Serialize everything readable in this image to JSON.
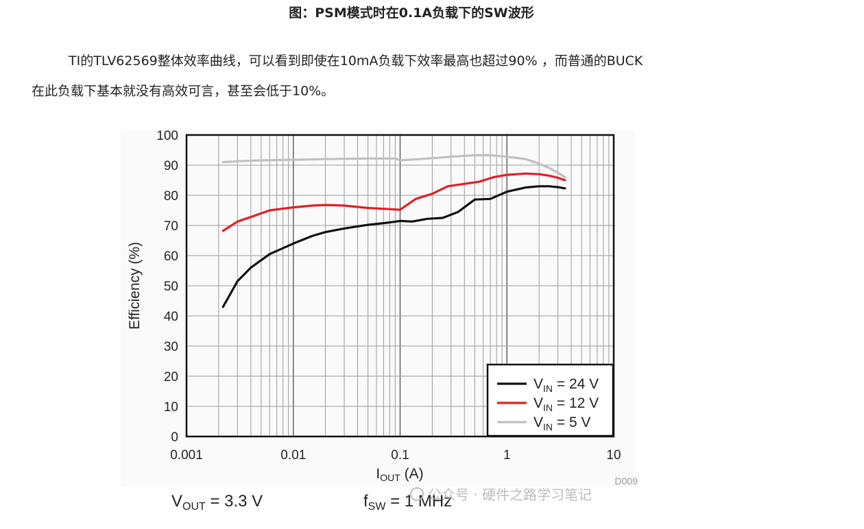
{
  "caption": "图：PSM模式时在0.1A负载下的SW波形",
  "paragraph": {
    "line1": "TI的TLV62569整体效率曲线，可以看到即使在10mA负载下效率最高也超过90% ，而普通的BUCK",
    "line2": "在此负载下基本就没有高效可言，甚至会低于10%。"
  },
  "chart_data": {
    "type": "line",
    "x_scale": "log",
    "xlim": [
      0.001,
      10
    ],
    "ylim": [
      0,
      100
    ],
    "grid": true,
    "legend_position": "bottom-right",
    "ylabel": "Efficiency (%)",
    "xlabel": {
      "main": "I",
      "sub": "OUT",
      "unit": " (A)"
    },
    "x_ticks": [
      "0.001",
      "0.01",
      "0.1",
      "1",
      "10"
    ],
    "y_ticks": [
      "0",
      "10",
      "20",
      "30",
      "40",
      "50",
      "60",
      "70",
      "80",
      "90",
      "100"
    ],
    "series": [
      {
        "name": {
          "main": "V",
          "sub": "IN",
          "rest": " = 24 V"
        },
        "color": "#111111",
        "points": [
          [
            0.0022,
            43
          ],
          [
            0.003,
            51.5
          ],
          [
            0.004,
            56
          ],
          [
            0.006,
            60.5
          ],
          [
            0.01,
            64
          ],
          [
            0.015,
            66.5
          ],
          [
            0.02,
            67.8
          ],
          [
            0.03,
            69
          ],
          [
            0.05,
            70.2
          ],
          [
            0.08,
            71
          ],
          [
            0.1,
            71.5
          ],
          [
            0.13,
            71.3
          ],
          [
            0.18,
            72.2
          ],
          [
            0.25,
            72.5
          ],
          [
            0.35,
            74.5
          ],
          [
            0.5,
            78.6
          ],
          [
            0.7,
            78.8
          ],
          [
            1.0,
            81.2
          ],
          [
            1.5,
            82.6
          ],
          [
            2.0,
            83
          ],
          [
            2.5,
            83
          ],
          [
            3.0,
            82.7
          ],
          [
            3.5,
            82.3
          ]
        ]
      },
      {
        "name": {
          "main": "V",
          "sub": "IN",
          "rest": " = 12 V"
        },
        "color": "#e31e24",
        "points": [
          [
            0.0022,
            68.2
          ],
          [
            0.003,
            71.3
          ],
          [
            0.004,
            72.8
          ],
          [
            0.006,
            75
          ],
          [
            0.01,
            76
          ],
          [
            0.015,
            76.6
          ],
          [
            0.02,
            76.8
          ],
          [
            0.03,
            76.6
          ],
          [
            0.05,
            75.8
          ],
          [
            0.08,
            75.4
          ],
          [
            0.1,
            75.2
          ],
          [
            0.14,
            78.8
          ],
          [
            0.2,
            80.5
          ],
          [
            0.28,
            83
          ],
          [
            0.4,
            83.8
          ],
          [
            0.55,
            84.5
          ],
          [
            0.75,
            86
          ],
          [
            1.0,
            86.8
          ],
          [
            1.5,
            87.2
          ],
          [
            2.0,
            87
          ],
          [
            2.5,
            86.5
          ],
          [
            3.0,
            85.8
          ],
          [
            3.5,
            85
          ]
        ]
      },
      {
        "name": {
          "main": "V",
          "sub": "IN",
          "rest": " = 5 V"
        },
        "color": "#c0c0c0",
        "points": [
          [
            0.0022,
            91
          ],
          [
            0.003,
            91.3
          ],
          [
            0.005,
            91.6
          ],
          [
            0.01,
            91.8
          ],
          [
            0.02,
            92
          ],
          [
            0.05,
            92.2
          ],
          [
            0.09,
            92.2
          ],
          [
            0.1,
            91.6
          ],
          [
            0.15,
            92
          ],
          [
            0.2,
            92.3
          ],
          [
            0.3,
            92.8
          ],
          [
            0.5,
            93.3
          ],
          [
            0.7,
            93.3
          ],
          [
            1.0,
            92.8
          ],
          [
            1.5,
            92
          ],
          [
            2.0,
            90.5
          ],
          [
            2.5,
            89
          ],
          [
            3.0,
            87.5
          ],
          [
            3.5,
            86
          ]
        ]
      }
    ],
    "footer": {
      "vout": {
        "main": "V",
        "sub": "OUT",
        "rest": " = 3.3 V"
      },
      "fsw": {
        "main": "f",
        "sub": "SW",
        "rest": " = 1 MHz"
      },
      "code": "D009"
    },
    "watermark": "公众号 · 硬件之路学习笔记"
  }
}
